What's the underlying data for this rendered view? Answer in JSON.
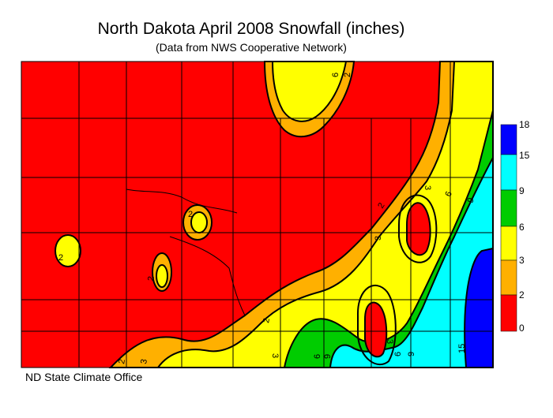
{
  "title": "North Dakota April 2008 Snowfall (inches)",
  "subtitle": "(Data from NWS Cooperative Network)",
  "credit": "ND State Climate Office",
  "legend": {
    "bins": [
      {
        "label": "0",
        "color": "#ff0000"
      },
      {
        "label": "2",
        "color": "#ffb000"
      },
      {
        "label": "3",
        "color": "#ffff00"
      },
      {
        "label": "6",
        "color": "#00cc00"
      },
      {
        "label": "9",
        "color": "#00ffff"
      },
      {
        "label": "15",
        "color": "#0000ff"
      },
      {
        "label": "18",
        "color": null
      }
    ]
  },
  "contour_labels": [
    {
      "text": "2",
      "bin": "2"
    },
    {
      "text": "3",
      "bin": "3"
    },
    {
      "text": "6",
      "bin": "6"
    },
    {
      "text": "9",
      "bin": "9"
    },
    {
      "text": "15",
      "bin": "15"
    }
  ],
  "colors": {
    "border": "#000000",
    "background": "#ffffff"
  }
}
